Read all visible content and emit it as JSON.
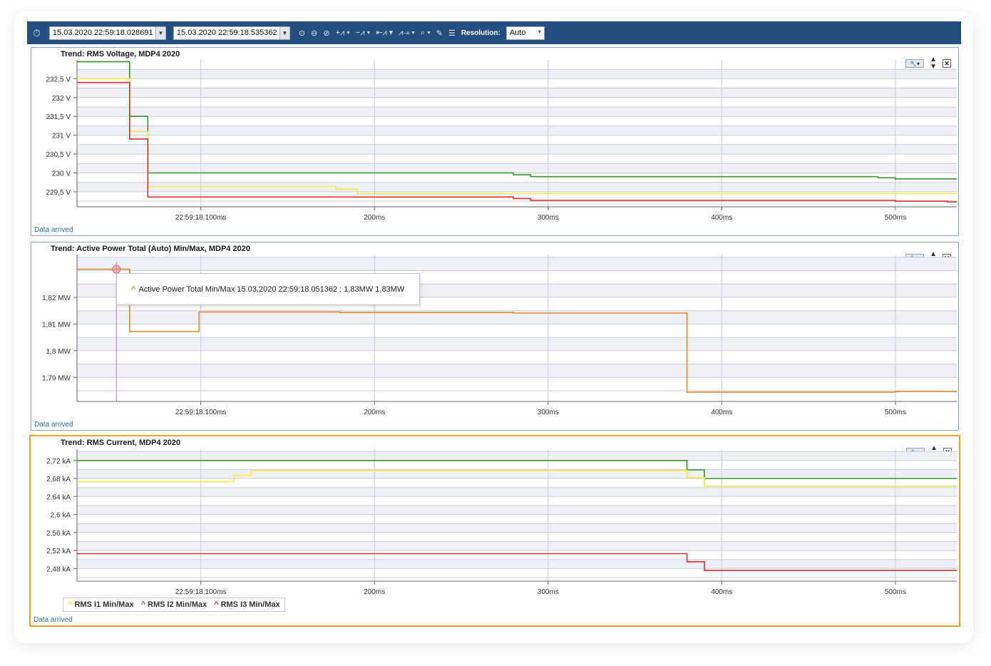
{
  "toolbar": {
    "start_time": "15.03.2020 22:59:18.028691",
    "end_time": "15.03.2020 22:59:18.535362",
    "resolution_label": "Resolution:",
    "resolution_value": "Auto",
    "icons": [
      "clock-icon",
      "play-icon",
      "history-icon",
      "timer-icon",
      "wave-add-icon",
      "wave-remove-icon",
      "wave-left-icon",
      "wave-right-icon",
      "zoom-icon",
      "wrench-icon",
      "list-icon"
    ]
  },
  "tooltip": {
    "text": "Active Power Total Min/Max 15.03.2020 22:59:18.051362 : 1,83MW 1,83MW",
    "color": "#d98a2c"
  },
  "legend": {
    "items": [
      {
        "label": "RMS I1 Min/Max",
        "color": "#f5e83a"
      },
      {
        "label": "RMS I2 Min/Max",
        "color": "#2e9a2e"
      },
      {
        "label": "RMS I3 Min/Max",
        "color": "#e52a2a"
      }
    ]
  },
  "chart_data": [
    {
      "type": "line",
      "title": "Trend: RMS Voltage, MDP4 2020",
      "status": "Data arrived",
      "xlim": [
        28.69,
        535.36
      ],
      "x_ticks": [
        {
          "value": 100,
          "label": "22:59:18.100ms"
        },
        {
          "value": 200,
          "label": "200ms"
        },
        {
          "value": 300,
          "label": "300ms"
        },
        {
          "value": 400,
          "label": "400ms"
        },
        {
          "value": 500,
          "label": "500ms"
        }
      ],
      "ylim": [
        229.1,
        233.0
      ],
      "y_ticks": [
        {
          "value": 232.5,
          "label": "232,5 V"
        },
        {
          "value": 232.0,
          "label": "232 V"
        },
        {
          "value": 231.5,
          "label": "231,5 V"
        },
        {
          "value": 231.0,
          "label": "231 V"
        },
        {
          "value": 230.5,
          "label": "230,5 V"
        },
        {
          "value": 230.0,
          "label": "230 V"
        },
        {
          "value": 229.5,
          "label": "229,5 V"
        }
      ],
      "series": [
        {
          "color": "#2e9a2e",
          "x": [
            28.7,
            59,
            59,
            69.5,
            69.5,
            280,
            280,
            290,
            290,
            490,
            490,
            500,
            500,
            535.4
          ],
          "y": [
            232.95,
            232.95,
            231.5,
            231.5,
            230.0,
            230.0,
            229.95,
            229.95,
            229.9,
            229.9,
            229.87,
            229.87,
            229.84,
            229.84
          ]
        },
        {
          "color": "#f5e83a",
          "x": [
            28.7,
            59,
            59,
            69.5,
            69.5,
            178,
            178,
            190,
            190,
            535.4
          ],
          "y": [
            232.5,
            232.5,
            231.1,
            231.1,
            229.64,
            229.64,
            229.57,
            229.57,
            229.45,
            229.45
          ]
        },
        {
          "color": "#e52a2a",
          "x": [
            28.7,
            59,
            59,
            69.5,
            69.5,
            280,
            280,
            290,
            290,
            500,
            500,
            530,
            530,
            535.4
          ],
          "y": [
            232.4,
            232.4,
            230.9,
            230.9,
            229.36,
            229.36,
            229.32,
            229.32,
            229.27,
            229.27,
            229.25,
            229.25,
            229.23,
            229.23
          ]
        }
      ]
    },
    {
      "type": "line",
      "title": "Trend: Active Power Total (Auto) Min/Max, MDP4 2020",
      "status": "Data arrived",
      "xlim": [
        28.69,
        535.36
      ],
      "x_ticks": [
        {
          "value": 100,
          "label": "22:59:18.100ms"
        },
        {
          "value": 200,
          "label": "200ms"
        },
        {
          "value": 300,
          "label": "300ms"
        },
        {
          "value": 400,
          "label": "400ms"
        },
        {
          "value": 500,
          "label": "500ms"
        }
      ],
      "ylim": [
        1.781,
        1.836
      ],
      "y_ticks": [
        {
          "value": 1.82,
          "label": "1,82 MW"
        },
        {
          "value": 1.81,
          "label": "1,81 MW"
        },
        {
          "value": 1.8,
          "label": "1,8 MW"
        },
        {
          "value": 1.79,
          "label": "1,79 MW"
        }
      ],
      "series": [
        {
          "color": "#d98a2c",
          "x": [
            28.7,
            59,
            59,
            89,
            89,
            99,
            99,
            180,
            180,
            280,
            280,
            380,
            380,
            500,
            500,
            535.4
          ],
          "y": [
            1.8305,
            1.8305,
            1.8072,
            1.8072,
            1.8072,
            1.8072,
            1.8145,
            1.8145,
            1.8143,
            1.8143,
            1.8141,
            1.8141,
            1.7845,
            1.7845,
            1.7847,
            1.7847
          ]
        }
      ],
      "cursor_x": 51.4,
      "marker": {
        "x": 51.4,
        "y": 1.8305
      }
    },
    {
      "type": "line",
      "title": "Trend: RMS Current, MDP4 2020",
      "status": "Data arrived",
      "xlim": [
        28.69,
        535.36
      ],
      "x_ticks": [
        {
          "value": 100,
          "label": "22:59:18.100ms"
        },
        {
          "value": 200,
          "label": "200ms"
        },
        {
          "value": 300,
          "label": "300ms"
        },
        {
          "value": 400,
          "label": "400ms"
        },
        {
          "value": 500,
          "label": "500ms"
        }
      ],
      "ylim": [
        2.452,
        2.745
      ],
      "y_ticks": [
        {
          "value": 2.72,
          "label": "2,72 kA"
        },
        {
          "value": 2.68,
          "label": "2,68 kA"
        },
        {
          "value": 2.64,
          "label": "2,64 kA"
        },
        {
          "value": 2.6,
          "label": "2,6 kA"
        },
        {
          "value": 2.56,
          "label": "2,56 kA"
        },
        {
          "value": 2.52,
          "label": "2,52 kA"
        },
        {
          "value": 2.48,
          "label": "2,48 kA"
        }
      ],
      "series": [
        {
          "color": "#2e9a2e",
          "x": [
            28.7,
            380,
            380,
            390,
            390,
            535.4
          ],
          "y": [
            2.72,
            2.72,
            2.699,
            2.699,
            2.68,
            2.68
          ]
        },
        {
          "color": "#f5e83a",
          "x": [
            28.7,
            119,
            119,
            129,
            129,
            380,
            380,
            390,
            390,
            535.4
          ],
          "y": [
            2.673,
            2.673,
            2.687,
            2.687,
            2.698,
            2.698,
            2.682,
            2.682,
            2.663,
            2.663
          ]
        },
        {
          "color": "#e52a2a",
          "x": [
            28.7,
            380,
            380,
            390,
            390,
            535.4
          ],
          "y": [
            2.513,
            2.513,
            2.495,
            2.495,
            2.476,
            2.476
          ]
        }
      ]
    }
  ]
}
